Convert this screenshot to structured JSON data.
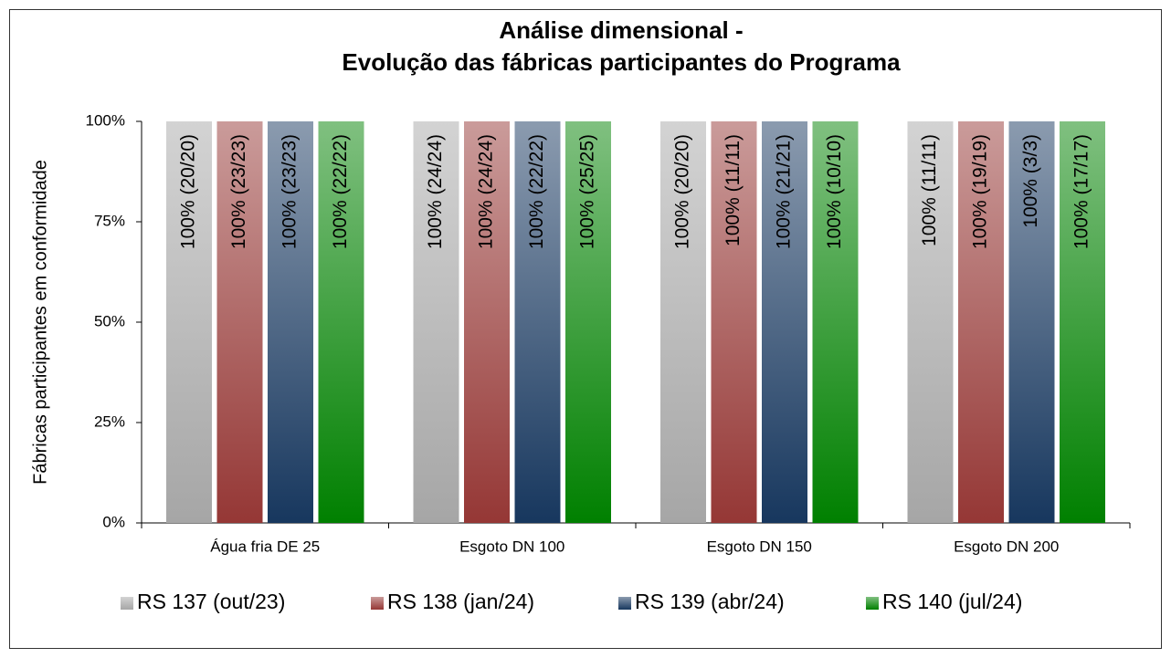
{
  "chart_data": {
    "type": "bar",
    "title": [
      "Análise dimensional -",
      "Evolução das fábricas participantes do Programa"
    ],
    "y_label": "Fábricas participantes em conformidade",
    "categories": [
      "Água fria DE 25",
      "Esgoto DN 100",
      "Esgoto DN 150",
      "Esgoto DN 200"
    ],
    "series": [
      {
        "name": "RS 137 (out/23)",
        "color": "#a6a6a6",
        "values": [
          100,
          100,
          100,
          100
        ],
        "value_labels": [
          "100% (20/20)",
          "100% (24/24)",
          "100% (20/20)",
          "100% (11/11)"
        ]
      },
      {
        "name": "RS 138 (jan/24)",
        "color": "#953735",
        "values": [
          100,
          100,
          100,
          100
        ],
        "value_labels": [
          "100% (23/23)",
          "100% (24/24)",
          "100% (11/11)",
          "100% (19/19)"
        ]
      },
      {
        "name": "RS 139 (abr/24)",
        "color": "#17375e",
        "values": [
          100,
          100,
          100,
          100
        ],
        "value_labels": [
          "100% (23/23)",
          "100% (22/22)",
          "100% (21/21)",
          "100% (3/3)"
        ]
      },
      {
        "name": "RS 140 (jul/24)",
        "color": "#008000",
        "values": [
          100,
          100,
          100,
          100
        ],
        "value_labels": [
          "100% (22/22)",
          "100% (25/25)",
          "100% (10/10)",
          "100% (17/17)"
        ]
      }
    ],
    "ylim": [
      0,
      100
    ],
    "yticks": [
      {
        "value": 0,
        "label": "0%"
      },
      {
        "value": 25,
        "label": "25%"
      },
      {
        "value": 50,
        "label": "50%"
      },
      {
        "value": 75,
        "label": "75%"
      },
      {
        "value": 100,
        "label": "100%"
      }
    ],
    "legend": "bottom"
  }
}
